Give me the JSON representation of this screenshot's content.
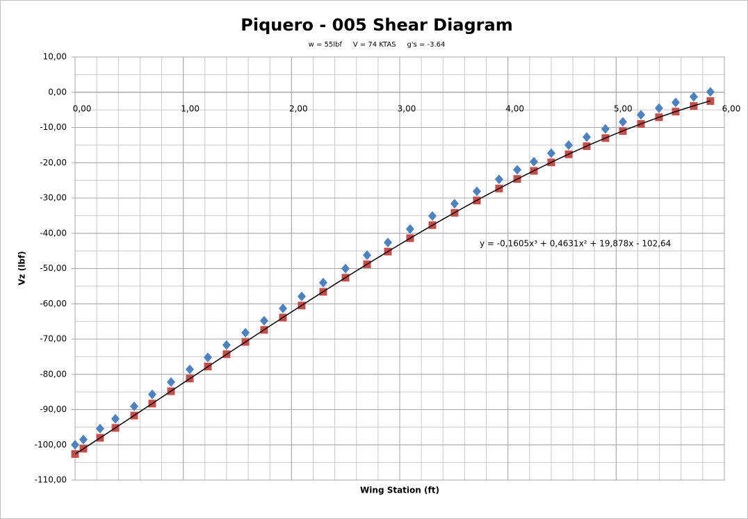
{
  "chart_data": {
    "type": "scatter",
    "title": "Piquero - 005 Shear Diagram",
    "subtitle": "w = 55lbf     V = 74 KTAS     g's = -3.64",
    "xlabel": "Wing Station (ft)",
    "ylabel": "Vz (lbf)",
    "x": [
      0,
      0.077,
      0.231,
      0.373,
      0.546,
      0.713,
      0.887,
      1.06,
      1.227,
      1.4,
      1.574,
      1.747,
      1.921,
      2.094,
      2.293,
      2.499,
      2.698,
      2.891,
      3.096,
      3.302,
      3.507,
      3.713,
      3.918,
      4.086,
      4.24,
      4.4,
      4.561,
      4.728,
      4.901,
      5.062,
      5.229,
      5.396,
      5.55,
      5.717,
      5.871
    ],
    "series": [
      {
        "color": "#4f81bd",
        "marker": "diamond",
        "values": [
          -100.0,
          -98.5,
          -95.4,
          -92.6,
          -89.1,
          -85.7,
          -82.2,
          -78.6,
          -75.2,
          -71.7,
          -68.2,
          -64.8,
          -61.3,
          -57.9,
          -54.0,
          -50.0,
          -46.2,
          -42.6,
          -38.8,
          -35.1,
          -31.6,
          -28.1,
          -24.7,
          -22.0,
          -19.7,
          -17.3,
          -15.0,
          -12.7,
          -10.4,
          -8.4,
          -6.4,
          -4.5,
          -2.9,
          -1.3,
          0.1
        ]
      },
      {
        "color": "#c0504d",
        "marker": "square",
        "values": [
          -102.6,
          -101.1,
          -98.0,
          -95.2,
          -91.7,
          -88.3,
          -84.8,
          -81.2,
          -77.8,
          -74.3,
          -70.8,
          -67.4,
          -63.9,
          -60.5,
          -56.6,
          -52.6,
          -48.8,
          -45.2,
          -41.4,
          -37.7,
          -34.2,
          -30.7,
          -27.3,
          -24.6,
          -22.3,
          -19.9,
          -17.6,
          -15.3,
          -13.0,
          -11.0,
          -9.0,
          -7.1,
          -5.5,
          -3.9,
          -2.5
        ]
      }
    ],
    "trendline": {
      "label": "y = -0,1605x³ + 0,4631x² + 19,878x - 102,64",
      "coefficients": [
        -0.1605,
        0.4631,
        19.878,
        -102.64
      ],
      "color": "#000000"
    },
    "xlim": [
      0,
      6
    ],
    "ylim": [
      -110,
      10
    ],
    "xticks": [
      {
        "value": 0,
        "label": "0,00"
      },
      {
        "value": 1,
        "label": "1,00"
      },
      {
        "value": 2,
        "label": "2,00"
      },
      {
        "value": 3,
        "label": "3,00"
      },
      {
        "value": 4,
        "label": "4,00"
      },
      {
        "value": 5,
        "label": "5,00"
      },
      {
        "value": 6,
        "label": "6,00"
      }
    ],
    "yticks": [
      {
        "value": 10,
        "label": "10,00"
      },
      {
        "value": 0,
        "label": "0,00"
      },
      {
        "value": -10,
        "label": "-10,00"
      },
      {
        "value": -20,
        "label": "-20,00"
      },
      {
        "value": -30,
        "label": "-30,00"
      },
      {
        "value": -40,
        "label": "-40,00"
      },
      {
        "value": -50,
        "label": "-50,00"
      },
      {
        "value": -60,
        "label": "-60,00"
      },
      {
        "value": -70,
        "label": "-70,00"
      },
      {
        "value": -80,
        "label": "-80,00"
      },
      {
        "value": -90,
        "label": "-90,00"
      },
      {
        "value": -100,
        "label": "-100,00"
      },
      {
        "value": -110,
        "label": "-110,00"
      }
    ],
    "minor_step_x": 0.2,
    "minor_step_y": 5,
    "grid": true
  }
}
